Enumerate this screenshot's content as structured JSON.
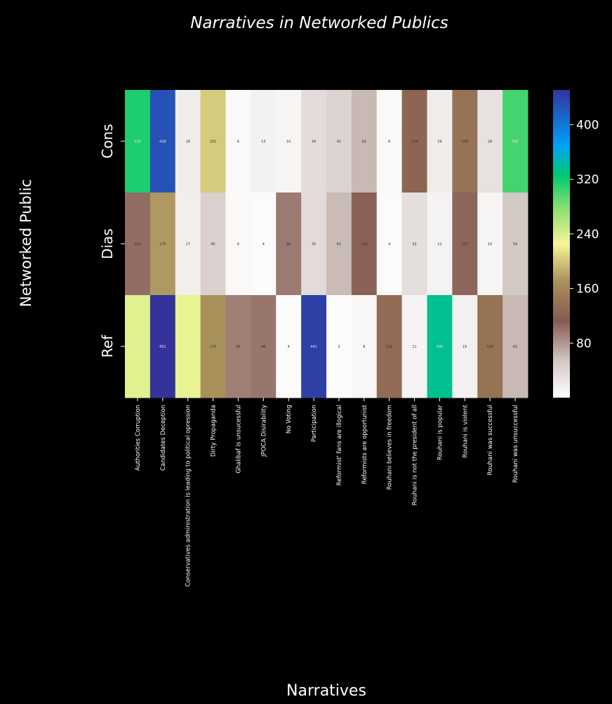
{
  "chart_data": {
    "type": "heatmap",
    "title": "Narratives in Networked Publics",
    "xlabel": "Narratives",
    "ylabel": "Networked Public",
    "rows": [
      "Cons",
      "Dias",
      "Ref"
    ],
    "columns": [
      "Authorities Corruption",
      "Candidates Deception",
      "Conservatives administration is leading to political opression",
      "Dirty Propaganda",
      "Ghalibaf is unsucessful",
      "JPOCA Disirability",
      "No Voting",
      "Participation",
      "Reformist' fans are illogical",
      "Reformists are opportunist",
      "Rouhani believes in freedom",
      "Rouhani is not the president of all",
      "Rouhani is popular",
      "Rouhani is violent",
      "Rouhani was successful",
      "Rouhani was unsuccessful"
    ],
    "values": [
      [
        315,
        428,
        18,
        202,
        6,
        13,
        10,
        34,
        42,
        62,
        6,
        124,
        19,
        139,
        29,
        302
      ],
      [
        103,
        175,
        17,
        45,
        6,
        4,
        96,
        35,
        61,
        109,
        4,
        32,
        12,
        107,
        10,
        54
      ],
      [
        236,
        451,
        232,
        170,
        93,
        98,
        4,
        441,
        3,
        8,
        131,
        11,
        335,
        15,
        139,
        62
      ]
    ],
    "colorbar": {
      "colormap": "terrain_r",
      "range": [
        0,
        451
      ],
      "ticks": [
        80,
        160,
        240,
        320,
        400
      ]
    }
  }
}
